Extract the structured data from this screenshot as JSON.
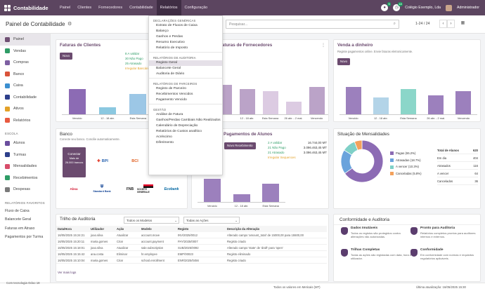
{
  "header": {
    "brand": "Contabilidade",
    "nav": [
      "Painel",
      "Clientes",
      "Fornecedores",
      "Contabilidade",
      "Relatórios",
      "Configuração"
    ],
    "active_nav": "Relatórios",
    "chat_badge": "5",
    "activity_badge": "18",
    "company": "Colégio Exemplo, Lda",
    "user": "Administrador"
  },
  "subbar": {
    "title": "Painel de Contabilidade",
    "search_placeholder": "Pesquisar...",
    "pager": "1-24 / 24"
  },
  "sidebar": {
    "items": [
      {
        "label": "Painel",
        "color": "#6f4f73"
      },
      {
        "label": "Vendas",
        "color": "#2e9c66"
      },
      {
        "label": "Compras",
        "color": "#7d5fa2"
      },
      {
        "label": "Banco",
        "color": "#d9533a"
      },
      {
        "label": "Caixa",
        "color": "#3b8fd0"
      },
      {
        "label": "Contabilidade",
        "color": "#2d3f8b"
      },
      {
        "label": "Ativos",
        "color": "#e3a127"
      },
      {
        "label": "Relatórios",
        "color": "#e85a40"
      }
    ],
    "escola_header": "ESCOLA",
    "escola": [
      {
        "label": "Alunos",
        "color": "#6a4e9e"
      },
      {
        "label": "Turmas",
        "color": "#2d3f8b"
      },
      {
        "label": "Mensalidades",
        "color": "#d84d6a"
      },
      {
        "label": "Recebimentos",
        "color": "#2e9c66"
      },
      {
        "label": "Despesas",
        "color": "#7a7a7a"
      }
    ],
    "fav_header": "RELATÓRIOS FAVORITOS",
    "favoritos": [
      "Fluxo de Caixa",
      "Balancete Geral",
      "Faturas em Atraso",
      "Pagamentos por Turma"
    ],
    "footer": "Com tecnologia Odoo 18"
  },
  "faturas_clientes": {
    "title": "Faturas de Clientes",
    "button": "Novo",
    "stats": [
      "8 A validar",
      "30 Não Pago",
      "25 Atrasado",
      "Irregular Bancário"
    ],
    "stat_colors": [
      "#2e9c66",
      "#2e9c66",
      "#2e9c66",
      "#e3a127"
    ]
  },
  "faturas_fornecedores": {
    "title": "Faturas de Fornecedores"
  },
  "venda_dinheiro": {
    "title": "Venda a dinheiro",
    "subtitle": "Registe pagamentos online. Envie faturas eletronicamente.",
    "button": "Novo"
  },
  "banco": {
    "title": "Banco",
    "subtitle": "Conecte seu banco. Concilie automaticamente.",
    "connect": [
      "Conectar",
      "Mais de",
      "26.000 bancos"
    ],
    "logos": [
      "BPI",
      "BCI",
      "Absa",
      "Standard Bank",
      "FNB",
      "SOCIETE GENERALE",
      "Ecobank"
    ]
  },
  "pagamentos_alunos": {
    "title": "Pagamentos de Alunos",
    "button": "Novo Recebimento",
    "stats": [
      {
        "label": "2 A validar",
        "value": "16.744,00 MT"
      },
      {
        "label": "21 Não Pago",
        "value": "3.096.463,45 MT"
      },
      {
        "label": "21 Atrasado",
        "value": "3.096.463,45 MT"
      },
      {
        "label": "Irregular Sequences",
        "value": ""
      }
    ]
  },
  "situacao_mensalidades": {
    "title": "Situação de Mensalidades",
    "legend": [
      {
        "label": "Pagas (65.2%)",
        "color": "#8c6bb4",
        "value": 65.2
      },
      {
        "label": "Atrasadas (18.7%)",
        "color": "#6aa3dc",
        "value": 18.7
      },
      {
        "label": "A vencer (10.3%)",
        "color": "#7fd0c7",
        "value": 10.3
      },
      {
        "label": "Canceladas (5.8%)",
        "color": "#f3a15c",
        "value": 5.8
      }
    ],
    "totals": [
      {
        "label": "Total de Alunos",
        "value": 620
      },
      {
        "label": "Em dia",
        "value": 404
      },
      {
        "label": "Atrasados",
        "value": 116
      },
      {
        "label": "A vencer",
        "value": 64
      },
      {
        "label": "Cancelados",
        "value": 36
      }
    ]
  },
  "trilho": {
    "title": "Trilho de Auditoria",
    "filter1": "Todos os Modelos",
    "filter2": "Todas as Ações",
    "headers": [
      "Data/Hora",
      "Utilizador",
      "Ação",
      "Modelo",
      "Registo",
      "Descrição da Alteração"
    ],
    "rows": [
      [
        "16/05/2025 15:24:21",
        "joao.silva",
        "Atualizar",
        "account.move",
        "INV/2025/0012",
        "Alterado campo 'amount_total' de 15000,00 para 15500,00"
      ],
      [
        "16/05/2025 15:20:11",
        "maria.gomes",
        "Criar",
        "account.payment",
        "PAY/2025/0007",
        "Registo criado"
      ],
      [
        "16/05/2025 15:18:01",
        "joao.silva",
        "Atualizar",
        "sale.subscription",
        "SUB/2025/0092",
        "Alterado campo 'state' de 'draft' para 'open'"
      ],
      [
        "16/05/2025 15:15:42",
        "ana.costa",
        "Eliminar",
        "hr.employee",
        "EMP/00023",
        "Registo eliminado"
      ],
      [
        "16/05/2025 15:10:04",
        "maria.gomes",
        "Criar",
        "school.enrollment",
        "ENR/2025/0456",
        "Registo criado"
      ]
    ],
    "more": "Ver mais logs"
  },
  "conformidade": {
    "title": "Conformidade e Auditoria",
    "items": [
      {
        "title": "Dados Imutáveis",
        "desc": "Todos os registos são protegidos contra alterações não autorizadas."
      },
      {
        "title": "Pronto para Auditoria",
        "desc": "Relatórios completos prontos para auditores internos e externos."
      },
      {
        "title": "Trilhas Completas",
        "desc": "Todas as ações são registadas com data, hora e utilizador."
      },
      {
        "title": "Conformidade",
        "desc": "Em conformidade com normas e requisitos regulatórios aplicáveis."
      }
    ]
  },
  "reports_menu": {
    "sections": [
      {
        "header": "DECLARAÇÕES GENÉRICAS",
        "items": [
          "Extrato de Fluxos de Caixa",
          "Balanço",
          "Ganhos e Perdas",
          "Resumo Executivo",
          "Relatório de Imposto"
        ]
      },
      {
        "header": "RELATÓRIOS DE AUDITORIA",
        "items": [
          "Registo Geral",
          "Balancete Geral",
          "Auditoria de Diário"
        ]
      },
      {
        "header": "RELATÓRIOS DE PARCEIROS",
        "items": [
          "Registo de Parceiro",
          "Recebimentos Vencidos",
          "Pagamento Vencido"
        ]
      },
      {
        "header": "GESTÃO",
        "items": [
          "Análise de Fatura",
          "Ganhos/Perdas Cambiais Não Realizados",
          "Calendário de Depreciação",
          "Relatórios de Custos analítico",
          "Acréscimo",
          "Diferimento"
        ]
      }
    ],
    "active_item": "Registo Geral"
  },
  "footer": {
    "center": "Todos os valores em Meticais (MT)",
    "right": "Última atualização: 16/05/2025 15:30"
  },
  "chart_data": [
    {
      "type": "bar",
      "name": "Faturas de Clientes",
      "categories": [
        "Vencido",
        "12 - 18 abr.",
        "Esta Semana"
      ],
      "values": [
        15,
        4,
        12
      ],
      "ylim": [
        0,
        20
      ]
    },
    {
      "type": "bar",
      "name": "Faturas de Fornecedores",
      "categories": [
        "",
        "12 - 18 abr.",
        "Esta Semana",
        "26 abr. - 2 mai.",
        "Vencendo"
      ],
      "values": [
        14,
        12,
        11,
        6,
        13
      ],
      "ylim": [
        0,
        18
      ]
    },
    {
      "type": "bar",
      "name": "Venda a dinheiro",
      "categories": [
        "Vencido",
        "12 - 18 abr.",
        "Esta Semana",
        "26 abr. - 2 mai.",
        "Vencendo"
      ],
      "values": [
        13,
        8,
        12,
        9,
        11
      ],
      "ylim": [
        0,
        18
      ]
    },
    {
      "type": "bar",
      "name": "Pagamentos de Alunos",
      "categories": [
        "Vencido",
        "12 - 18 abr.",
        "Esta Semana"
      ],
      "values": [
        9,
        3,
        7
      ],
      "ylim": [
        0,
        12
      ]
    },
    {
      "type": "pie",
      "name": "Situação de Mensalidades",
      "categories": [
        "Pagas",
        "Atrasadas",
        "A vencer",
        "Canceladas"
      ],
      "values": [
        65.2,
        18.7,
        10.3,
        5.8
      ]
    }
  ]
}
